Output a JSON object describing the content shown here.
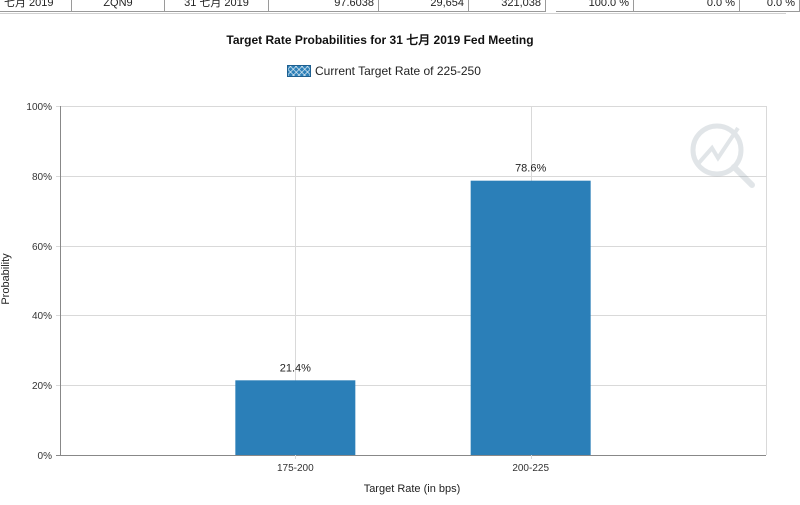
{
  "table_row": {
    "cells": [
      "七月 2019",
      "ZQN9",
      "31 七月 2019",
      "97.6038",
      "29,654",
      "321,038",
      "100.0 %",
      "0.0 %",
      "0.0 %"
    ]
  },
  "chart_data": {
    "type": "bar",
    "title": "Target Rate Probabilities for 31 七月 2019 Fed Meeting",
    "legend": {
      "label": "Current Target Rate of 225-250",
      "placement": "top-center"
    },
    "categories": [
      "175-200",
      "200-225"
    ],
    "series": [
      {
        "name": "Current Target Rate of 225-250",
        "values": [
          21.4,
          78.6
        ]
      }
    ],
    "data_labels": [
      "21.4%",
      "78.6%"
    ],
    "xlabel": "Target Rate (in bps)",
    "ylabel": "Probability",
    "ylim": [
      0,
      100
    ],
    "yticks": [
      "0%",
      "20%",
      "40%",
      "60%",
      "80%",
      "100%"
    ],
    "grid": true,
    "colors": {
      "bar": "#2b7fb8",
      "grid": "#d9d9d9",
      "axis": "#888888"
    }
  }
}
